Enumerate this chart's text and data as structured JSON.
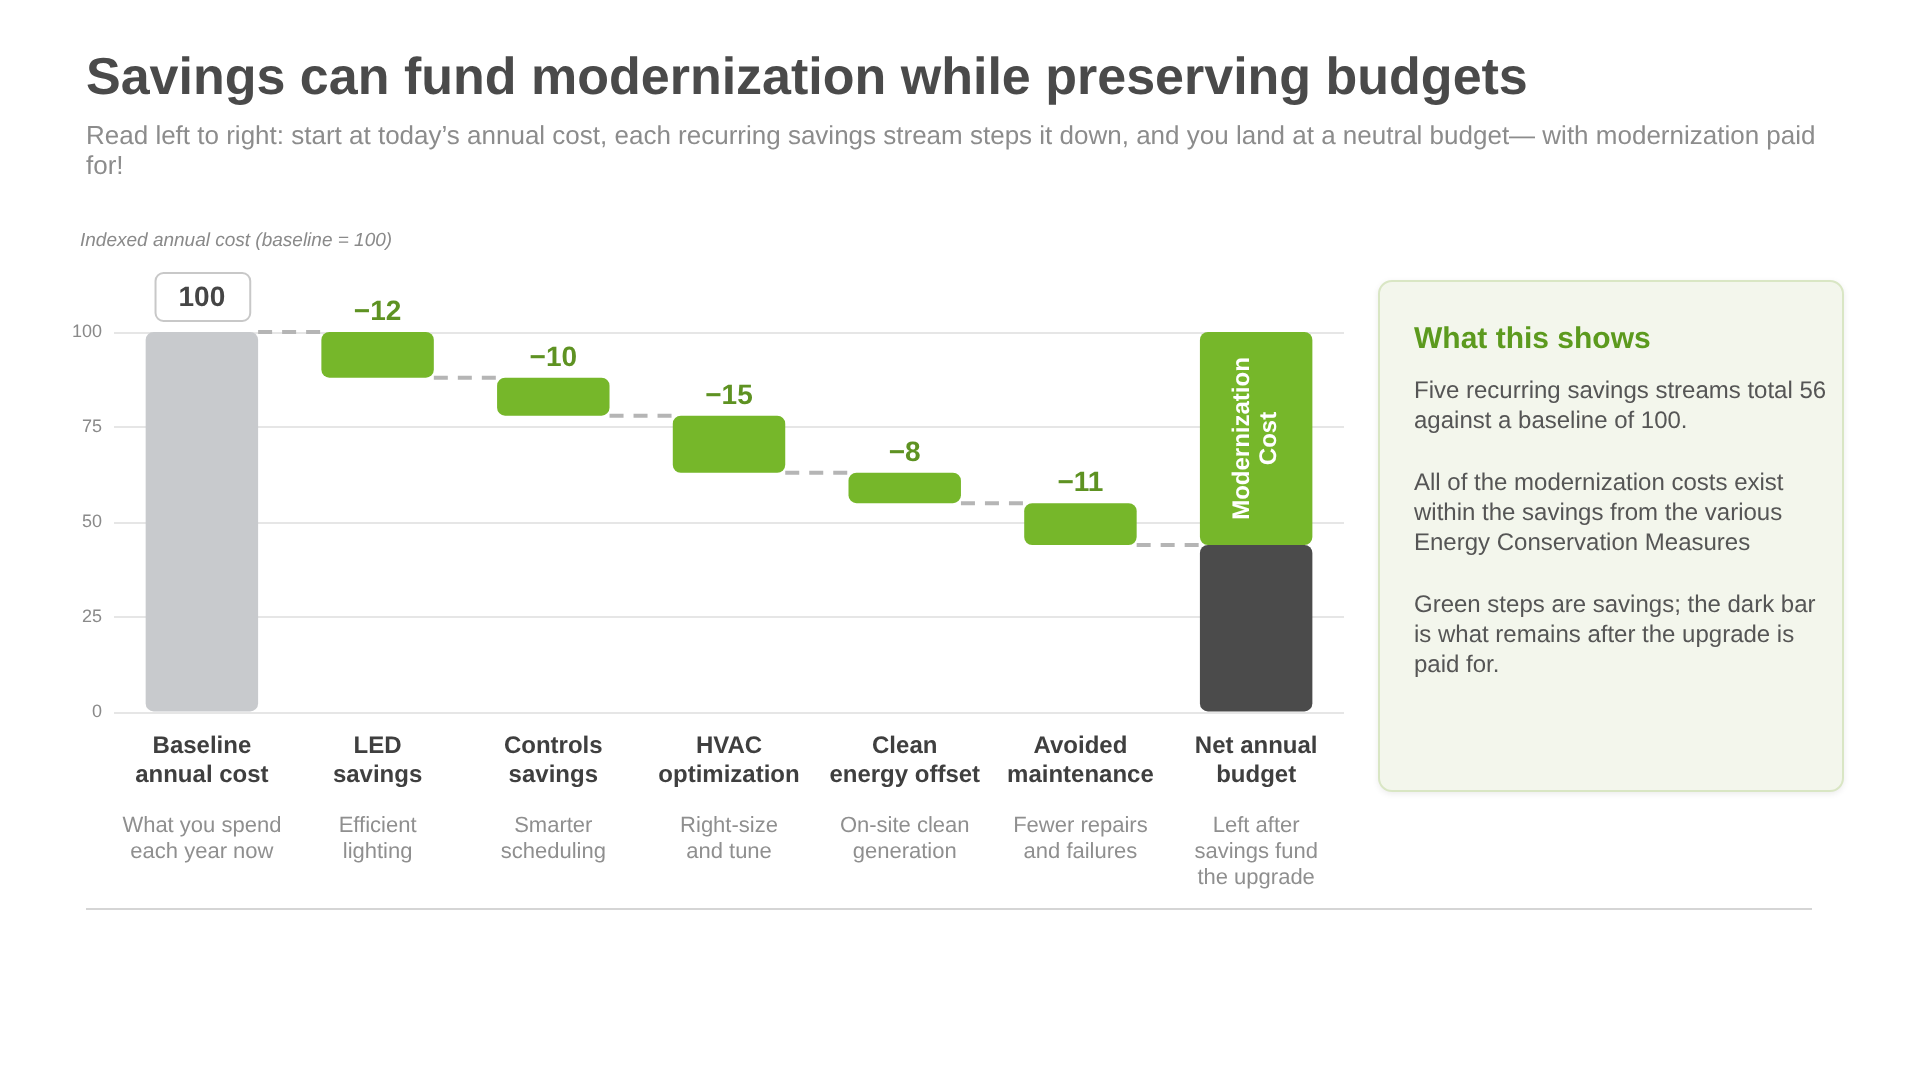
{
  "chart_data": [
    {
      "type": "bar",
      "title": "Savings can fund modernization while preserving budgets",
      "subtitle": "Read left to right: start at today’s annual cost, each recurring savings stream steps it down, and you land at a neutral budget— with modernization paid for!",
      "ylabel": "Indexed annual cost (baseline = 100)",
      "categories": [
        "Baseline annual cost",
        "LED savings",
        "Controls savings",
        "HVAC optimization",
        "Clean energy offset",
        "Avoided maintenance",
        "Net annual budget"
      ],
      "series": [
        {
          "colors": [
            "#c8cacd",
            "#76b72a",
            "#76b72a",
            "#76b72a",
            "#76b72a",
            "#76b72a",
            "#4b4b4b"
          ],
          "values": [
            100,
            -12,
            -10,
            -15,
            -8,
            -11,
            44
          ],
          "base": [
            0,
            100,
            88,
            78,
            63,
            55,
            0
          ],
          "value_labels": [
            "100",
            "−12",
            "−10",
            "−15",
            "−8",
            "−11",
            null
          ]
        },
        {
          "name": "Modernization Cost",
          "color": "#76b72a",
          "values": [
            null,
            null,
            null,
            null,
            null,
            null,
            56
          ],
          "base": [
            null,
            null,
            null,
            null,
            null,
            null,
            44
          ]
        }
      ],
      "ylim": [
        0,
        100
      ],
      "yticks": [
        0,
        25,
        50,
        75,
        100
      ],
      "grid": "y",
      "legend": false,
      "annotations": [
        "What you spend each year now",
        "Efficient lighting",
        "Smarter scheduling",
        "Right-size and tune",
        "On-site clean generation",
        "Fewer repairs and failures",
        "Left after savings fund the upgrade"
      ]
    },
    {
      "type": "other",
      "title": "What this shows",
      "annotations": [
        "Five recurring savings streams total 56 against a baseline of 100.",
        "All of the modernization costs exist within the savings from the various Energy Conservation Measures",
        "Green steps are savings; the dark bar is what remains after the upgrade is paid for."
      ]
    }
  ]
}
